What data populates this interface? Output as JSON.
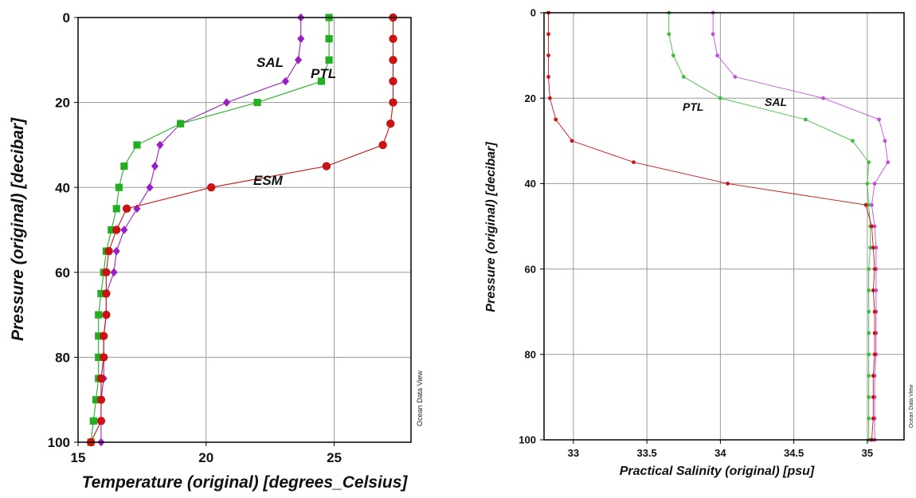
{
  "chart_data": [
    {
      "type": "line",
      "xlabel": "Temperature (original) [degrees_Celsius]",
      "ylabel": "Pressure (original) [decibar]",
      "xlim": [
        15,
        28
      ],
      "ylim": [
        0,
        100
      ],
      "y_inverted": true,
      "grid": true,
      "x_ticks": [
        "15",
        "20",
        "25"
      ],
      "y_ticks": [
        "0",
        "20",
        "40",
        "60",
        "80",
        "100"
      ],
      "credit": "Ocean Data View",
      "series": [
        {
          "name": "SAL",
          "color": "#9b1fc4",
          "marker": "diamond",
          "x": [
            23.7,
            23.7,
            23.6,
            23.1,
            20.8,
            19.0,
            18.2,
            18.0,
            17.8,
            17.3,
            16.8,
            16.5,
            16.4,
            16.1,
            16.1,
            16.0,
            16.0,
            16.0,
            15.9,
            15.9,
            15.9
          ],
          "y": [
            0,
            5,
            10,
            15,
            20,
            25,
            30,
            35,
            40,
            45,
            50,
            55,
            60,
            65,
            70,
            75,
            80,
            85,
            90,
            95,
            100
          ]
        },
        {
          "name": "PTL",
          "color": "#22b022",
          "marker": "square",
          "x": [
            24.8,
            24.8,
            24.8,
            24.5,
            22.0,
            19.0,
            17.3,
            16.8,
            16.6,
            16.5,
            16.3,
            16.1,
            16.0,
            15.9,
            15.8,
            15.8,
            15.8,
            15.8,
            15.7,
            15.6,
            15.5
          ],
          "y": [
            0,
            5,
            10,
            15,
            20,
            25,
            30,
            35,
            40,
            45,
            50,
            55,
            60,
            65,
            70,
            75,
            80,
            85,
            90,
            95,
            100
          ]
        },
        {
          "name": "ESM",
          "color": "#c81414",
          "marker": "circle",
          "x": [
            27.3,
            27.3,
            27.3,
            27.3,
            27.3,
            27.2,
            26.9,
            24.7,
            20.2,
            16.9,
            16.5,
            16.2,
            16.1,
            16.1,
            16.1,
            16.0,
            16.0,
            15.9,
            15.9,
            15.9,
            15.5
          ],
          "y": [
            0,
            5,
            10,
            15,
            20,
            25,
            30,
            35,
            40,
            45,
            50,
            55,
            60,
            65,
            70,
            75,
            80,
            85,
            90,
            95,
            100
          ]
        }
      ],
      "annotations": [
        "SAL",
        "PTL",
        "ESM"
      ]
    },
    {
      "type": "line",
      "xlabel": "Practical Salinity (original) [psu]",
      "ylabel": "Pressure (original) [decibar]",
      "xlim": [
        32.8,
        35.25
      ],
      "ylim": [
        0,
        100
      ],
      "y_inverted": true,
      "grid": true,
      "x_ticks": [
        "33",
        "33.5",
        "34",
        "34.5",
        "35"
      ],
      "y_ticks": [
        "0",
        "20",
        "40",
        "60",
        "80",
        "100"
      ],
      "credit": "Ocean Data View",
      "series": [
        {
          "name": "SAL",
          "color": "#c050d8",
          "marker": "dot",
          "x": [
            33.95,
            33.95,
            33.98,
            34.1,
            34.7,
            35.08,
            35.12,
            35.14,
            35.05,
            35.03,
            35.05,
            35.06,
            35.06,
            35.06,
            35.06,
            35.06,
            35.06,
            35.05,
            35.05,
            35.05,
            35.05
          ],
          "y": [
            0,
            5,
            10,
            15,
            20,
            25,
            30,
            35,
            40,
            45,
            50,
            55,
            60,
            65,
            70,
            75,
            80,
            85,
            90,
            95,
            100
          ]
        },
        {
          "name": "PTL",
          "color": "#44bb44",
          "marker": "dot",
          "x": [
            33.65,
            33.65,
            33.68,
            33.75,
            34.0,
            34.58,
            34.9,
            35.01,
            35.0,
            35.01,
            35.02,
            35.02,
            35.01,
            35.01,
            35.01,
            35.01,
            35.01,
            35.01,
            35.01,
            35.01,
            35.01
          ],
          "y": [
            0,
            5,
            10,
            15,
            20,
            25,
            30,
            35,
            40,
            45,
            50,
            55,
            60,
            65,
            70,
            75,
            80,
            85,
            90,
            95,
            100
          ]
        },
        {
          "name": "ESM",
          "color": "#c81414",
          "marker": "dot",
          "x": [
            32.83,
            32.83,
            32.83,
            32.83,
            32.84,
            32.88,
            32.99,
            33.41,
            34.05,
            34.99,
            35.03,
            35.04,
            35.05,
            35.04,
            35.05,
            35.05,
            35.05,
            35.04,
            35.04,
            35.04,
            35.03
          ],
          "y": [
            0,
            5,
            10,
            15,
            20,
            25,
            30,
            35,
            40,
            45,
            50,
            55,
            60,
            65,
            70,
            75,
            80,
            85,
            90,
            95,
            100
          ]
        }
      ],
      "annotations": [
        "PTL",
        "SAL"
      ]
    }
  ]
}
